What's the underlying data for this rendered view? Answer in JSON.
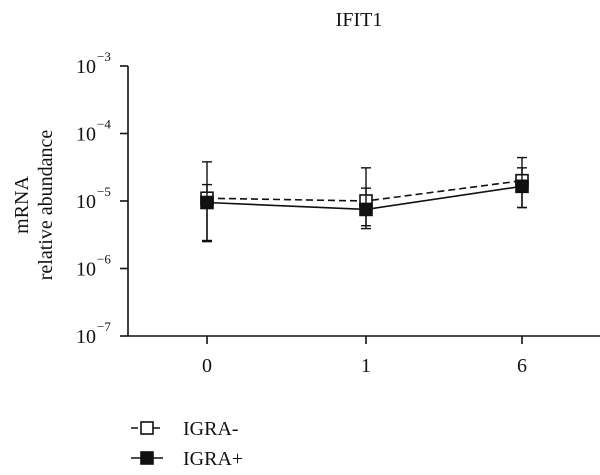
{
  "chart_data": {
    "type": "line",
    "title": "IFIT1",
    "xlabel": "",
    "ylabel": [
      "mRNA",
      "relative abundance"
    ],
    "categories": [
      "0",
      "1",
      "6"
    ],
    "y_scale": "log",
    "ylim": [
      1e-07,
      0.001
    ],
    "y_ticks": [
      {
        "base": "10",
        "exp": "−7",
        "value": 1e-07
      },
      {
        "base": "10",
        "exp": "−6",
        "value": 1e-06
      },
      {
        "base": "10",
        "exp": "−5",
        "value": 1e-05
      },
      {
        "base": "10",
        "exp": "−4",
        "value": 0.0001
      },
      {
        "base": "10",
        "exp": "−3",
        "value": 0.001
      }
    ],
    "grid": false,
    "legend_position": "bottom-left",
    "series": [
      {
        "name": "IGRA-",
        "marker": "open-square",
        "line_style": "dashed",
        "values": [
          1.1e-05,
          1e-05,
          2e-05
        ],
        "error_low": [
          2.6e-06,
          4.3e-06,
          8e-06
        ],
        "error_high": [
          3.8e-05,
          3.1e-05,
          4.4e-05
        ]
      },
      {
        "name": "IGRA+",
        "marker": "filled-square",
        "line_style": "solid",
        "values": [
          9.5e-06,
          7.5e-06,
          1.65e-05
        ],
        "error_low": [
          2.5e-06,
          3.9e-06,
          8e-06
        ],
        "error_high": [
          1.75e-05,
          1.55e-05,
          3.1e-05
        ]
      }
    ]
  },
  "colors": {
    "ink": "#111111",
    "background": "#ffffff"
  }
}
